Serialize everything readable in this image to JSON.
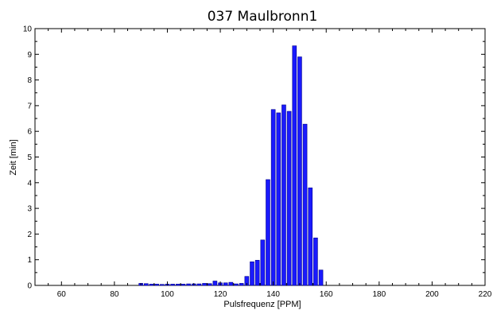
{
  "chart_data": {
    "type": "bar",
    "title": "037 Maulbronn1",
    "xlabel": "Pulsfrequenz [PPM]",
    "ylabel": "Zeit [min]",
    "xlim": [
      50,
      220
    ],
    "ylim": [
      0,
      10
    ],
    "x_ticks": [
      60,
      80,
      100,
      120,
      140,
      160,
      180,
      200,
      220
    ],
    "y_ticks": [
      0,
      1,
      2,
      3,
      4,
      5,
      6,
      7,
      8,
      9,
      10
    ],
    "grid": false,
    "bar_color": "#1a1aff",
    "bar_edge_color": "#00008b",
    "x": [
      90,
      92,
      94,
      96,
      98,
      100,
      102,
      104,
      106,
      108,
      110,
      112,
      114,
      116,
      118,
      120,
      122,
      124,
      126,
      128,
      130,
      132,
      134,
      136,
      138,
      140,
      142,
      144,
      146,
      148,
      150,
      152,
      154,
      156,
      158
    ],
    "values": [
      0.08,
      0.07,
      0.05,
      0.05,
      0.04,
      0.05,
      0.05,
      0.05,
      0.05,
      0.06,
      0.06,
      0.06,
      0.08,
      0.07,
      0.17,
      0.1,
      0.1,
      0.12,
      0.06,
      0.08,
      0.35,
      0.92,
      0.98,
      1.77,
      4.12,
      6.85,
      6.72,
      7.03,
      6.78,
      9.33,
      8.9,
      6.28,
      3.8,
      1.85,
      0.6
    ]
  }
}
